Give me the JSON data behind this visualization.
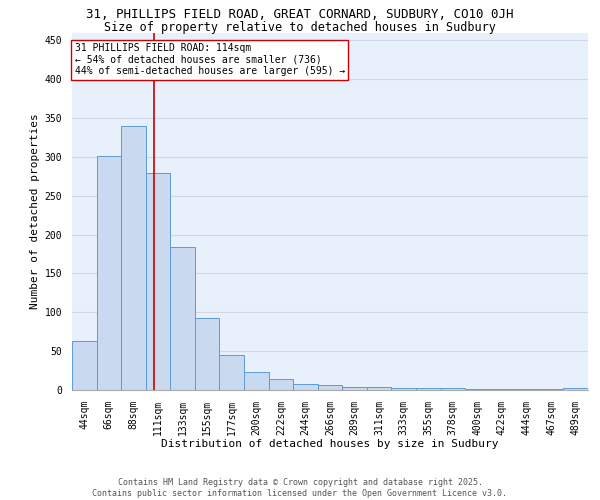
{
  "title1": "31, PHILLIPS FIELD ROAD, GREAT CORNARD, SUDBURY, CO10 0JH",
  "title2": "Size of property relative to detached houses in Sudbury",
  "xlabel": "Distribution of detached houses by size in Sudbury",
  "ylabel": "Number of detached properties",
  "bar_labels": [
    "44sqm",
    "66sqm",
    "88sqm",
    "111sqm",
    "133sqm",
    "155sqm",
    "177sqm",
    "200sqm",
    "222sqm",
    "244sqm",
    "266sqm",
    "289sqm",
    "311sqm",
    "333sqm",
    "355sqm",
    "378sqm",
    "400sqm",
    "422sqm",
    "444sqm",
    "467sqm",
    "489sqm"
  ],
  "bar_values": [
    63,
    301,
    340,
    279,
    184,
    93,
    45,
    23,
    14,
    8,
    6,
    4,
    4,
    3,
    2,
    3,
    1,
    1,
    1,
    1,
    3
  ],
  "bar_color": "#c9d9f0",
  "bar_edge_color": "#5b9bd5",
  "vline_x_index": 3,
  "vline_color": "#cc0000",
  "annotation_text": "31 PHILLIPS FIELD ROAD: 114sqm\n← 54% of detached houses are smaller (736)\n44% of semi-detached houses are larger (595) →",
  "annotation_box_color": "white",
  "annotation_box_edge": "#cc0000",
  "ylim": [
    0,
    460
  ],
  "yticks": [
    0,
    50,
    100,
    150,
    200,
    250,
    300,
    350,
    400,
    450
  ],
  "background_color": "#e8f0fb",
  "grid_color": "#d0d8e8",
  "footer": "Contains HM Land Registry data © Crown copyright and database right 2025.\nContains public sector information licensed under the Open Government Licence v3.0.",
  "title1_fontsize": 9,
  "title2_fontsize": 8.5,
  "xlabel_fontsize": 8,
  "ylabel_fontsize": 8,
  "annotation_fontsize": 7,
  "footer_fontsize": 6,
  "tick_fontsize": 7
}
